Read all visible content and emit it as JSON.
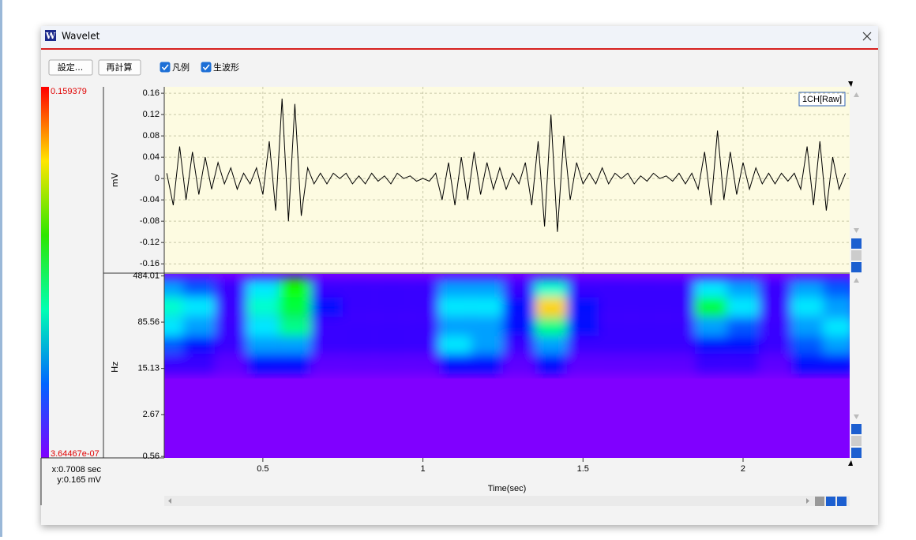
{
  "window": {
    "title": "Wavelet",
    "icon": "W"
  },
  "toolbar": {
    "buttons": [
      "設定...",
      "再計算"
    ],
    "checkboxes": [
      {
        "label": "凡例",
        "checked": true
      },
      {
        "label": "生波形",
        "checked": true
      }
    ]
  },
  "colorbar": {
    "max": 0.159379,
    "min": {
      "value": 3.64467e-07,
      "label": "3.64467e-07"
    }
  },
  "waveform": {
    "legend": "1CH[Raw]",
    "ylabel": "mV",
    "color": "#000000",
    "background": "#fdfbe1",
    "ylim": [
      -0.176,
      0.172
    ],
    "yticks": [
      0.16,
      0.12,
      0.08,
      0.04,
      0,
      -0.04,
      -0.08,
      -0.12,
      -0.16
    ],
    "x": [
      0.2,
      0.22,
      0.24,
      0.26,
      0.28,
      0.3,
      0.32,
      0.34,
      0.36,
      0.38,
      0.4,
      0.42,
      0.44,
      0.46,
      0.48,
      0.5,
      0.52,
      0.54,
      0.56,
      0.58,
      0.6,
      0.62,
      0.64,
      0.66,
      0.68,
      0.7,
      0.72,
      0.74,
      0.76,
      0.78,
      0.8,
      0.82,
      0.84,
      0.86,
      0.88,
      0.9,
      0.92,
      0.94,
      0.96,
      0.98,
      1,
      1.02,
      1.04,
      1.06,
      1.08,
      1.1,
      1.12,
      1.14,
      1.16,
      1.18,
      1.2,
      1.22,
      1.24,
      1.26,
      1.28,
      1.3,
      1.32,
      1.34,
      1.36,
      1.38,
      1.4,
      1.42,
      1.44,
      1.46,
      1.48,
      1.5,
      1.52,
      1.54,
      1.56,
      1.58,
      1.6,
      1.62,
      1.64,
      1.66,
      1.68,
      1.7,
      1.72,
      1.74,
      1.76,
      1.78,
      1.8,
      1.82,
      1.84,
      1.86,
      1.88,
      1.9,
      1.92,
      1.94,
      1.96,
      1.98,
      2,
      2.02,
      2.04,
      2.06,
      2.08,
      2.1,
      2.12,
      2.14,
      2.16,
      2.18,
      2.2,
      2.22,
      2.24,
      2.26,
      2.28,
      2.3,
      2.32
    ],
    "values": [
      0.01,
      -0.05,
      0.06,
      -0.04,
      0.05,
      -0.03,
      0.04,
      -0.02,
      0.03,
      -0.01,
      0.02,
      -0.02,
      0.01,
      -0.01,
      0.02,
      -0.03,
      0.07,
      -0.06,
      0.15,
      -0.08,
      0.14,
      -0.07,
      0.02,
      -0.01,
      0.01,
      -0.01,
      0.01,
      0,
      0.01,
      -0.01,
      0.005,
      -0.01,
      0.01,
      -0.005,
      0.005,
      -0.01,
      0.01,
      0,
      0.005,
      -0.005,
      0,
      -0.005,
      0.01,
      -0.04,
      0.03,
      -0.05,
      0.04,
      -0.04,
      0.05,
      -0.03,
      0.03,
      -0.02,
      0.02,
      -0.02,
      0.01,
      -0.01,
      0.03,
      -0.05,
      0.07,
      -0.09,
      0.12,
      -0.1,
      0.08,
      -0.04,
      0.03,
      -0.01,
      0.01,
      -0.01,
      0.02,
      -0.01,
      0.01,
      0,
      0.01,
      -0.01,
      0.005,
      -0.005,
      0.01,
      0,
      0.005,
      -0.005,
      0.01,
      -0.01,
      0.01,
      -0.02,
      0.05,
      -0.05,
      0.09,
      -0.04,
      0.05,
      -0.03,
      0.03,
      -0.02,
      0.02,
      -0.01,
      0.01,
      -0.01,
      0.01,
      -0.005,
      0.01,
      -0.02,
      0.06,
      -0.05,
      0.07,
      -0.06,
      0.04,
      -0.02,
      0.01
    ]
  },
  "spectrogram": {
    "ylabel": "Hz",
    "log": true,
    "ylim": [
      0.53,
      520
    ],
    "yticks": [
      484.01,
      85.56,
      15.13,
      2.67,
      0.56
    ],
    "times": [
      0.2,
      0.3,
      0.4,
      0.5,
      0.6,
      0.7,
      0.8,
      0.9,
      1,
      1.1,
      1.2,
      1.3,
      1.4,
      1.5,
      1.6,
      1.7,
      1.8,
      1.9,
      2,
      2.1,
      2.2,
      2.3
    ],
    "freqs": [
      300,
      150,
      70,
      35,
      18
    ],
    "intensity": [
      [
        0.04,
        0.03,
        0.01,
        0.05,
        0.09,
        0.01,
        0.01,
        0.01,
        0.01,
        0.04,
        0.04,
        0.01,
        0.06,
        0.01,
        0.01,
        0.01,
        0.01,
        0.05,
        0.04,
        0.01,
        0.04,
        0.03
      ],
      [
        0.06,
        0.05,
        0.01,
        0.06,
        0.08,
        0.02,
        0.01,
        0.01,
        0.01,
        0.05,
        0.05,
        0.02,
        0.13,
        0.02,
        0.01,
        0.01,
        0.01,
        0.08,
        0.05,
        0.01,
        0.05,
        0.04
      ],
      [
        0.05,
        0.04,
        0.01,
        0.05,
        0.07,
        0.01,
        0.01,
        0.01,
        0.01,
        0.04,
        0.04,
        0.02,
        0.07,
        0.02,
        0.01,
        0.01,
        0.01,
        0.04,
        0.03,
        0.01,
        0.04,
        0.05
      ],
      [
        0.03,
        0.02,
        0.01,
        0.04,
        0.04,
        0.01,
        0.01,
        0.01,
        0.01,
        0.05,
        0.04,
        0.01,
        0.04,
        0.01,
        0.01,
        0.01,
        0.01,
        0.02,
        0.02,
        0.01,
        0.03,
        0.04
      ],
      [
        0.01,
        0.01,
        0.005,
        0.02,
        0.02,
        0.005,
        0.005,
        0.005,
        0.005,
        0.02,
        0.02,
        0.005,
        0.02,
        0.005,
        0.005,
        0.005,
        0.005,
        0.01,
        0.01,
        0.005,
        0.02,
        0.02
      ]
    ]
  },
  "xaxis": {
    "label": "Time(sec)",
    "xlim": [
      0.192,
      2.333
    ],
    "xticks": [
      0.5,
      1,
      1.5,
      2
    ]
  },
  "cursor": {
    "x": "x:0.7008 sec",
    "y": "y:0.165 mV"
  }
}
